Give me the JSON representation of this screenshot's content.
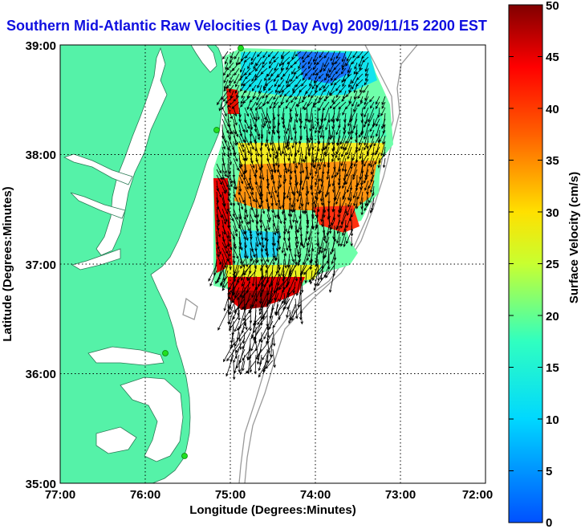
{
  "title": "Southern Mid-Atlantic Raw Velocities (1 Day Avg) 2009/11/15 2200 EST",
  "chart_data": {
    "type": "map",
    "title": "Southern Mid-Atlantic Raw Velocities (1 Day Avg) 2009/11/15 2200 EST",
    "xlabel": "Longitude (Degrees:Minutes)",
    "ylabel": "Latitude (Degrees:Minutes)",
    "x_ticks": [
      "77:00",
      "76:00",
      "75:00",
      "74:00",
      "73:00",
      "72:00"
    ],
    "y_ticks": [
      "39:00",
      "38:00",
      "37:00",
      "36:00",
      "35:00"
    ],
    "xlim": [
      -77,
      -72
    ],
    "ylim": [
      35,
      39
    ],
    "grid": true,
    "colorbar": {
      "label": "Surface Velocity (cm/s)",
      "range": [
        0,
        50
      ],
      "ticks": [
        "0",
        "5",
        "10",
        "15",
        "20",
        "25",
        "30",
        "35",
        "40",
        "45",
        "50"
      ]
    },
    "colors": {
      "land": "#55f2a8",
      "title": "#1010e0",
      "bathymetry": "#9a9a9a"
    },
    "station_markers": [
      {
        "lon": -74.88,
        "lat": 38.98
      },
      {
        "lon": -75.08,
        "lat": 38.22
      },
      {
        "lon": -75.72,
        "lat": 36.2
      },
      {
        "lon": -75.52,
        "lat": 35.25
      }
    ]
  }
}
